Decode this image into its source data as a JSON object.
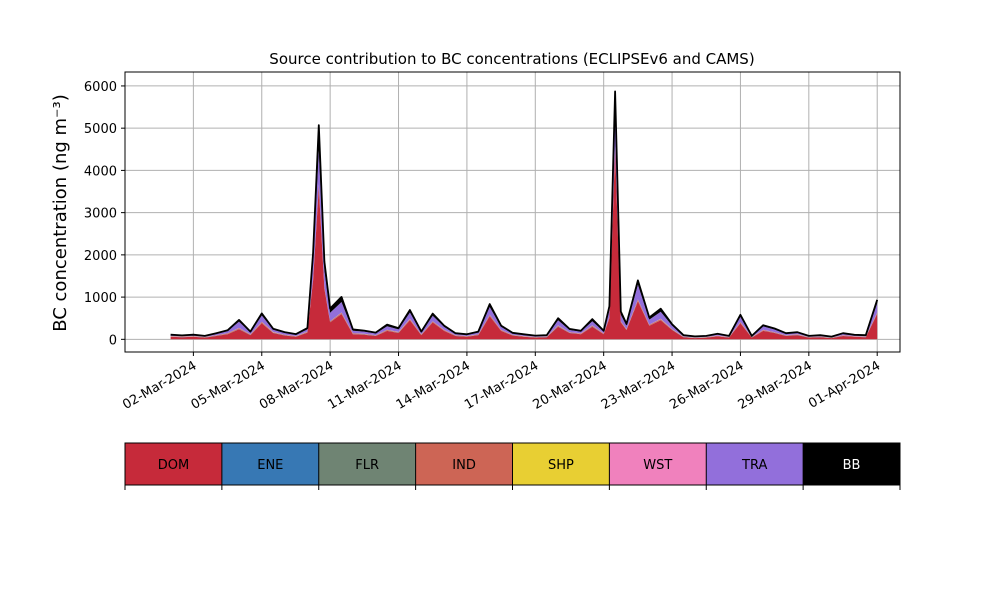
{
  "chart_data": {
    "type": "area",
    "title": "Source contribution to BC concentrations (ECLIPSEv6 and CAMS)",
    "ylabel": "BC concentration (ng m⁻³)",
    "xlabel": "",
    "ylim": [
      -300,
      6330
    ],
    "xlim": [
      "2024-02-28",
      "2024-04-02"
    ],
    "grid": true,
    "yticks": [
      0,
      1000,
      2000,
      3000,
      4000,
      5000,
      6000
    ],
    "xtick_labels": [
      "02-Mar-2024",
      "05-Mar-2024",
      "08-Mar-2024",
      "11-Mar-2024",
      "14-Mar-2024",
      "17-Mar-2024",
      "20-Mar-2024",
      "23-Mar-2024",
      "26-Mar-2024",
      "29-Mar-2024",
      "01-Apr-2024"
    ],
    "x": [
      "2024-03-01",
      "2024-03-01 12:00",
      "2024-03-02",
      "2024-03-02 12:00",
      "2024-03-03",
      "2024-03-03 12:00",
      "2024-03-04",
      "2024-03-04 12:00",
      "2024-03-05",
      "2024-03-05 12:00",
      "2024-03-06",
      "2024-03-06 12:00",
      "2024-03-07",
      "2024-03-07 06:00",
      "2024-03-07 12:00",
      "2024-03-07 18:00",
      "2024-03-08",
      "2024-03-08 12:00",
      "2024-03-09",
      "2024-03-09 12:00",
      "2024-03-10",
      "2024-03-10 12:00",
      "2024-03-11",
      "2024-03-11 12:00",
      "2024-03-12",
      "2024-03-12 12:00",
      "2024-03-13",
      "2024-03-13 12:00",
      "2024-03-14",
      "2024-03-14 12:00",
      "2024-03-15",
      "2024-03-15 12:00",
      "2024-03-16",
      "2024-03-16 12:00",
      "2024-03-17",
      "2024-03-17 12:00",
      "2024-03-18",
      "2024-03-18 12:00",
      "2024-03-19",
      "2024-03-19 12:00",
      "2024-03-20",
      "2024-03-20 06:00",
      "2024-03-20 12:00",
      "2024-03-20 18:00",
      "2024-03-21",
      "2024-03-21 12:00",
      "2024-03-22",
      "2024-03-22 12:00",
      "2024-03-23",
      "2024-03-23 12:00",
      "2024-03-24",
      "2024-03-24 12:00",
      "2024-03-25",
      "2024-03-25 12:00",
      "2024-03-26",
      "2024-03-26 12:00",
      "2024-03-27",
      "2024-03-27 12:00",
      "2024-03-28",
      "2024-03-28 12:00",
      "2024-03-29",
      "2024-03-29 12:00",
      "2024-03-30",
      "2024-03-30 12:00",
      "2024-03-31",
      "2024-03-31 12:00",
      "2024-04-01"
    ],
    "series": [
      {
        "name": "DOM",
        "color": "#c62a3a",
        "values": [
          60,
          50,
          60,
          40,
          80,
          120,
          240,
          100,
          380,
          150,
          90,
          60,
          160,
          1400,
          3600,
          1200,
          400,
          600,
          120,
          110,
          80,
          200,
          150,
          450,
          100,
          400,
          200,
          80,
          60,
          100,
          550,
          200,
          90,
          60,
          40,
          50,
          300,
          150,
          120,
          300,
          120,
          500,
          4500,
          400,
          220,
          900,
          320,
          450,
          220,
          50,
          30,
          40,
          70,
          40,
          380,
          40,
          200,
          150,
          80,
          100,
          40,
          50,
          30,
          80,
          60,
          50,
          600
        ]
      },
      {
        "name": "ENE",
        "color": "#3778b4",
        "values": [
          5,
          5,
          5,
          5,
          5,
          5,
          5,
          5,
          5,
          5,
          5,
          5,
          5,
          5,
          5,
          5,
          5,
          5,
          5,
          5,
          5,
          5,
          5,
          5,
          5,
          5,
          5,
          5,
          5,
          5,
          5,
          5,
          5,
          5,
          5,
          5,
          5,
          5,
          5,
          5,
          5,
          5,
          5,
          5,
          5,
          5,
          5,
          5,
          5,
          5,
          5,
          5,
          5,
          5,
          5,
          5,
          5,
          5,
          5,
          5,
          5,
          5,
          5,
          5,
          5,
          5,
          5
        ]
      },
      {
        "name": "FLR",
        "color": "#6f8473",
        "values": [
          0,
          0,
          0,
          0,
          0,
          0,
          0,
          0,
          0,
          0,
          0,
          0,
          0,
          0,
          0,
          0,
          0,
          0,
          0,
          0,
          0,
          0,
          0,
          0,
          0,
          0,
          0,
          0,
          0,
          0,
          0,
          0,
          0,
          0,
          0,
          0,
          0,
          0,
          0,
          0,
          0,
          0,
          0,
          0,
          0,
          0,
          0,
          0,
          0,
          0,
          0,
          0,
          0,
          0,
          0,
          0,
          0,
          0,
          0,
          0,
          0,
          0,
          0,
          0,
          0,
          0,
          0
        ]
      },
      {
        "name": "IND",
        "color": "#cd6555",
        "values": [
          10,
          10,
          10,
          8,
          10,
          15,
          20,
          12,
          25,
          15,
          12,
          10,
          15,
          40,
          60,
          30,
          20,
          25,
          15,
          12,
          10,
          18,
          15,
          25,
          12,
          20,
          15,
          10,
          10,
          12,
          25,
          15,
          10,
          10,
          8,
          8,
          20,
          12,
          12,
          20,
          12,
          25,
          60,
          20,
          15,
          35,
          18,
          25,
          15,
          8,
          6,
          8,
          10,
          8,
          20,
          8,
          15,
          12,
          10,
          10,
          8,
          8,
          6,
          10,
          8,
          8,
          25
        ]
      },
      {
        "name": "SHP",
        "color": "#e8cf33",
        "values": [
          2,
          2,
          2,
          2,
          2,
          2,
          2,
          2,
          2,
          2,
          2,
          2,
          2,
          2,
          2,
          2,
          2,
          2,
          2,
          2,
          2,
          2,
          2,
          2,
          2,
          2,
          2,
          2,
          2,
          2,
          2,
          2,
          2,
          2,
          2,
          2,
          2,
          2,
          2,
          2,
          2,
          2,
          2,
          2,
          2,
          2,
          2,
          2,
          2,
          2,
          2,
          2,
          2,
          2,
          2,
          2,
          2,
          2,
          2,
          2,
          2,
          2,
          2,
          2,
          2,
          2,
          2
        ]
      },
      {
        "name": "WST",
        "color": "#f081bd",
        "values": [
          3,
          3,
          3,
          3,
          3,
          3,
          3,
          3,
          3,
          3,
          3,
          3,
          3,
          3,
          3,
          3,
          3,
          3,
          3,
          3,
          3,
          3,
          3,
          3,
          3,
          3,
          3,
          3,
          3,
          3,
          3,
          3,
          3,
          3,
          3,
          3,
          3,
          3,
          3,
          3,
          3,
          3,
          3,
          3,
          3,
          3,
          3,
          3,
          3,
          3,
          3,
          3,
          3,
          3,
          3,
          3,
          3,
          3,
          3,
          3,
          3,
          3,
          3,
          3,
          3,
          3,
          3
        ]
      },
      {
        "name": "TRA",
        "color": "#926fdb",
        "values": [
          20,
          15,
          20,
          15,
          30,
          50,
          150,
          40,
          150,
          50,
          40,
          30,
          50,
          400,
          800,
          400,
          200,
          250,
          60,
          50,
          40,
          80,
          60,
          150,
          40,
          130,
          70,
          30,
          25,
          40,
          180,
          70,
          30,
          25,
          20,
          20,
          120,
          50,
          40,
          100,
          40,
          150,
          700,
          150,
          80,
          350,
          120,
          170,
          80,
          20,
          15,
          15,
          25,
          15,
          120,
          15,
          80,
          60,
          30,
          35,
          15,
          20,
          12,
          30,
          20,
          20,
          220
        ]
      },
      {
        "name": "BB",
        "color": "#000000",
        "values": [
          10,
          8,
          10,
          8,
          15,
          20,
          40,
          20,
          50,
          25,
          20,
          15,
          30,
          200,
          600,
          200,
          100,
          120,
          30,
          25,
          20,
          40,
          30,
          60,
          20,
          50,
          30,
          15,
          15,
          20,
          70,
          30,
          15,
          15,
          10,
          10,
          50,
          25,
          20,
          50,
          20,
          100,
          600,
          80,
          40,
          100,
          50,
          70,
          30,
          10,
          8,
          8,
          15,
          8,
          50,
          8,
          30,
          25,
          15,
          15,
          8,
          10,
          6,
          15,
          10,
          10,
          80
        ]
      }
    ],
    "legend": {
      "placement": "below",
      "entries": [
        {
          "label": "DOM",
          "color": "#c62a3a",
          "text_color": "#000000"
        },
        {
          "label": "ENE",
          "color": "#3778b4",
          "text_color": "#000000"
        },
        {
          "label": "FLR",
          "color": "#6f8473",
          "text_color": "#000000"
        },
        {
          "label": "IND",
          "color": "#cd6555",
          "text_color": "#000000"
        },
        {
          "label": "SHP",
          "color": "#e8cf33",
          "text_color": "#000000"
        },
        {
          "label": "WST",
          "color": "#f081bd",
          "text_color": "#000000"
        },
        {
          "label": "TRA",
          "color": "#926fdb",
          "text_color": "#000000"
        },
        {
          "label": "BB",
          "color": "#000000",
          "text_color": "#ffffff"
        }
      ]
    }
  }
}
